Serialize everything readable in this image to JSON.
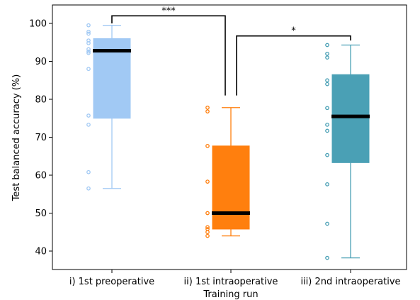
{
  "chart_data": {
    "type": "box",
    "xlabel": "Training run",
    "ylabel": "Test balanced accuracy (%)",
    "ylim": [
      35,
      105
    ],
    "yticks": [
      40,
      50,
      60,
      70,
      80,
      90,
      100
    ],
    "grid": false,
    "categories": [
      "i) 1st preoperative",
      "ii) 1st intraoperative",
      "iii) 2nd intraoperative"
    ],
    "boxes": [
      {
        "category": "i) 1st preoperative",
        "color": "#a1c9f4",
        "whisker_low": 56.5,
        "q1": 75.0,
        "median": 92.8,
        "q3": 96.0,
        "whisker_high": 99.5,
        "points": [
          99.5,
          97.8,
          97.3,
          95.5,
          94.8,
          93.2,
          92.6,
          92.2,
          88.0,
          75.7,
          73.3,
          60.8,
          56.5
        ]
      },
      {
        "category": "ii) 1st intraoperative",
        "color": "#ff7f0e",
        "whisker_low": 44.0,
        "q1": 45.8,
        "median": 50.0,
        "q3": 67.7,
        "whisker_high": 77.8,
        "points": [
          77.8,
          76.8,
          67.7,
          58.3,
          50.0,
          46.3,
          45.8,
          45.0,
          44.0
        ]
      },
      {
        "category": "iii) 2nd intraoperative",
        "color": "#4aa0b5",
        "whisker_low": 38.2,
        "q1": 63.3,
        "median": 75.5,
        "q3": 86.5,
        "whisker_high": 94.3,
        "points": [
          94.3,
          92.0,
          91.0,
          85.0,
          84.0,
          77.7,
          73.3,
          71.7,
          65.3,
          57.6,
          47.2,
          38.2
        ]
      }
    ],
    "significance": [
      {
        "from": "i) 1st preoperative",
        "to": "ii) 1st intraoperative",
        "label": "***",
        "y": 102.0,
        "drop_from": 100.0,
        "drop_to": 81.0
      },
      {
        "from": "ii) 1st intraoperative",
        "to": "iii) 2nd intraoperative",
        "label": "*",
        "y": 96.7,
        "drop_from": 81.0,
        "drop_to": 95.5
      }
    ]
  }
}
